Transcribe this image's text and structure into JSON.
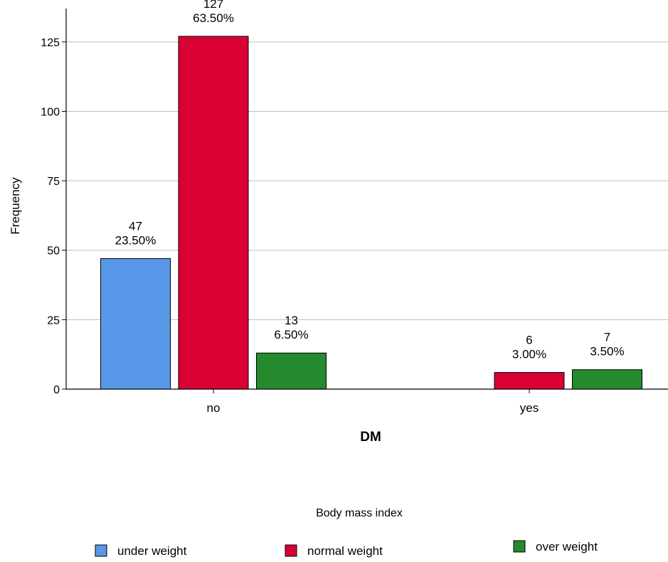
{
  "chart_data": {
    "type": "bar",
    "categories": [
      "no",
      "yes"
    ],
    "series": [
      {
        "name": "under weight",
        "values": [
          47,
          0
        ],
        "labels": [
          [
            "47",
            "23.50%"
          ],
          null
        ],
        "color": "#5898E8"
      },
      {
        "name": "normal weight",
        "values": [
          127,
          6
        ],
        "labels": [
          [
            "127",
            "63.50%"
          ],
          [
            "6",
            "3.00%"
          ]
        ],
        "color": "#D90033"
      },
      {
        "name": "over weight",
        "values": [
          13,
          7
        ],
        "labels": [
          [
            "13",
            "6.50%"
          ],
          [
            "7",
            "3.50%"
          ]
        ],
        "color": "#258A2E"
      }
    ],
    "xlabel": "DM",
    "ylabel": "Frequency",
    "ylim": [
      0,
      137
    ],
    "yticks": [
      0,
      25,
      50,
      75,
      100,
      125
    ],
    "grid": true,
    "legend": {
      "title": "Body mass index",
      "placement": "bottom"
    }
  }
}
